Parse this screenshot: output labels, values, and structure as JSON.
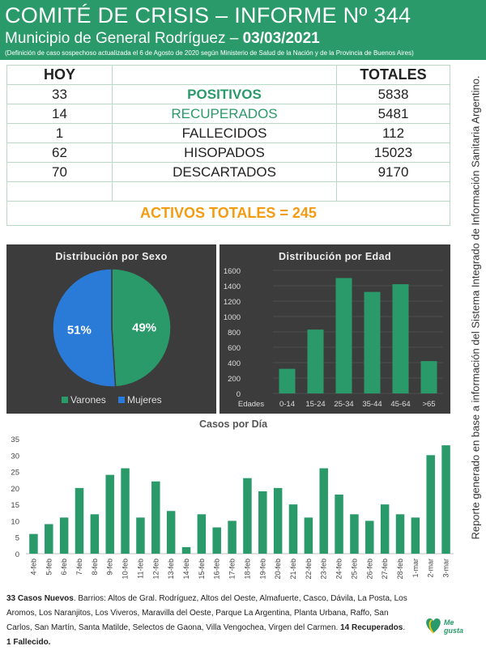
{
  "header": {
    "title": "COMITÉ DE CRISIS – INFORME Nº 344",
    "municipality": "Municipio de General Rodríguez – ",
    "date": "03/03/2021",
    "note": "(Definición de caso sospechoso actualizada el 6 de Agosto de 2020 según Ministerio de Salud de la Nación y de la Provincia de Buenos Aires)"
  },
  "side_note": "Reporte generado en base a información del Sistema Integrado de Información Sanitaria Argentino.",
  "table": {
    "col_hoy": "HOY",
    "col_totales": "TOTALES",
    "rows": [
      {
        "hoy": "33",
        "label": "POSITIVOS",
        "total": "5838"
      },
      {
        "hoy": "14",
        "label": "RECUPERADOS",
        "total": "5481"
      },
      {
        "hoy": "1",
        "label": "FALLECIDOS",
        "total": "112"
      },
      {
        "hoy": "62",
        "label": "HISOPADOS",
        "total": "15023"
      },
      {
        "hoy": "70",
        "label": "DESCARTADOS",
        "total": "9170"
      }
    ],
    "activos": "ACTIVOS TOTALES = 245"
  },
  "colors": {
    "green": "#2a9a6a",
    "blue": "#2a7bd8",
    "orange": "#f39c12",
    "panel": "#3c3c3c"
  },
  "chart_data": [
    {
      "type": "pie",
      "title": "Distribución por Sexo",
      "labels": [
        "Varones",
        "Mujeres"
      ],
      "values": [
        49,
        51
      ],
      "value_labels": [
        "49%",
        "51%"
      ],
      "colors": [
        "#2a9a6a",
        "#2a7bd8"
      ],
      "legend": "bottom"
    },
    {
      "type": "bar",
      "title": "Distribución por Edad",
      "xlabel": "Edades",
      "categories": [
        "0-14",
        "15-24",
        "25-34",
        "35-44",
        "45-64",
        ">65"
      ],
      "values": [
        320,
        830,
        1500,
        1320,
        1420,
        420
      ],
      "ylim": [
        0,
        1600
      ],
      "yticks": [
        0,
        200,
        400,
        600,
        800,
        1000,
        1200,
        1400,
        1600
      ],
      "grid": true
    },
    {
      "type": "bar",
      "title": "Casos por Día",
      "categories": [
        "4-feb",
        "5-feb",
        "6-feb",
        "7-feb",
        "8-feb",
        "9-feb",
        "10-feb",
        "11-feb",
        "12-feb",
        "13-feb",
        "14-feb",
        "15-feb",
        "16-feb",
        "17-feb",
        "18-feb",
        "19-feb",
        "20-feb",
        "21-feb",
        "22-feb",
        "23-feb",
        "24-feb",
        "25-feb",
        "26-feb",
        "27-feb",
        "28-feb",
        "1-mar",
        "2-mar",
        "3-mar"
      ],
      "values": [
        6,
        9,
        11,
        20,
        12,
        24,
        26,
        11,
        22,
        13,
        2,
        12,
        8,
        10,
        23,
        19,
        20,
        15,
        11,
        26,
        18,
        12,
        10,
        15,
        12,
        11,
        30,
        33
      ],
      "ylim": [
        0,
        35
      ],
      "yticks": [
        0,
        5,
        10,
        15,
        20,
        25,
        30,
        35
      ],
      "grid": false
    }
  ],
  "footer": {
    "cases_bold": "33 Casos Nuevos",
    "barrios": ". Barrios: Altos de Gral. Rodríguez, Altos del Oeste, Almafuerte, Casco, Dávila, La Posta, Los Aromos, Los Naranjitos, Los Viveros, Maravilla del Oeste, Parque La Argentina, Planta Urbana, Raffo, San Carlos, San Martín, Santa Matilde, Selectos de Gaona, Villa Vengochea, Virgen del Carmen. ",
    "recuperados_bold": "14 Recuperados",
    "sep": ". ",
    "fallecido_bold": "1 Fallecido."
  },
  "logo": {
    "text": "Me gusta"
  }
}
